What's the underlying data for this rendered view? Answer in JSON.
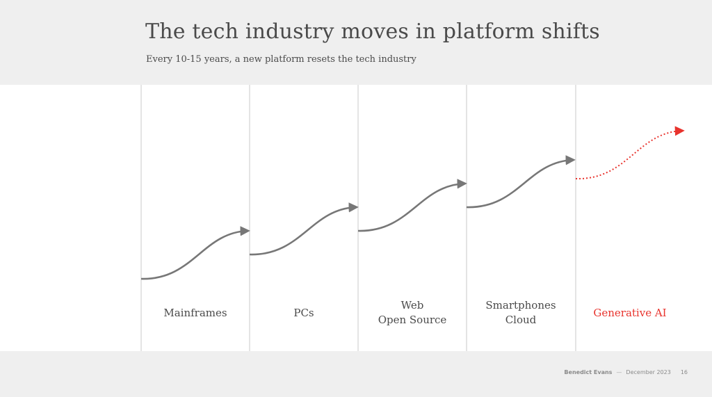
{
  "header": {
    "title": "The tech industry moves in platform shifts",
    "subtitle": "Every 10-15 years, a new platform resets the tech industry"
  },
  "eras": [
    {
      "lines": [
        "Mainframes"
      ],
      "highlight": false
    },
    {
      "lines": [
        "PCs"
      ],
      "highlight": false
    },
    {
      "lines": [
        "Web",
        "Open Source"
      ],
      "highlight": false
    },
    {
      "lines": [
        "Smartphones",
        "Cloud"
      ],
      "highlight": false
    },
    {
      "lines": [
        "Generative AI"
      ],
      "highlight": true
    }
  ],
  "footer": {
    "author": "Benedict Evans",
    "separator": "—",
    "date": "December 2023",
    "page": "16"
  },
  "colors": {
    "accent": "#e8332d",
    "curve": "#777777",
    "divider": "#e4e4e4",
    "band": "#efefef",
    "text": "#4a4a4a"
  }
}
